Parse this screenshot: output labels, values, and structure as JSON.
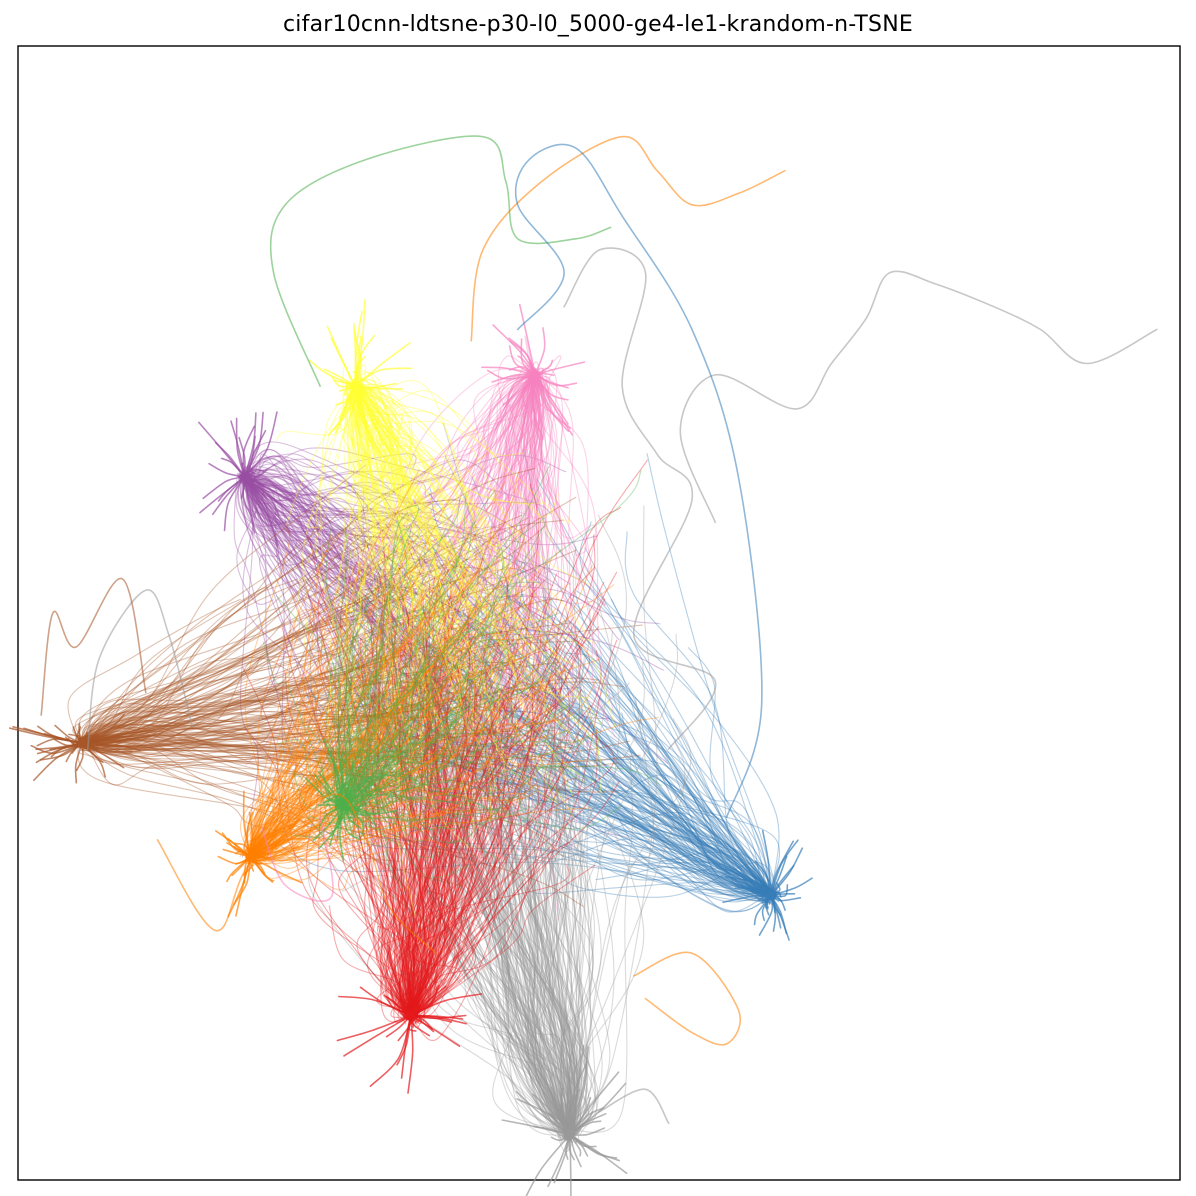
{
  "chart_data": {
    "type": "line",
    "title": "cifar10cnn-ldtsne-p30-l0_5000-ge4-le1-krandom-n-TSNE",
    "xlabel": "",
    "ylabel": "",
    "x_ticks_visible": false,
    "y_ticks_visible": false,
    "xlim": [
      0,
      100
    ],
    "ylim": [
      0,
      100
    ],
    "grid": false,
    "legend": "none",
    "line_opacity": 0.45,
    "series": [
      {
        "color": "#377eb8",
        "hub": [
          64.8,
          25.1
        ],
        "spread": [
          5.6,
          6.8
        ],
        "n": 160
      },
      {
        "color": "#e41a1c",
        "hub": [
          33.8,
          14.5
        ],
        "spread": [
          8.0,
          9.0
        ],
        "n": 240
      },
      {
        "color": "#999999",
        "hub": [
          47.5,
          4.0
        ],
        "spread": [
          9.0,
          11.0
        ],
        "n": 220
      },
      {
        "color": "#a65628",
        "hub": [
          5.5,
          38.5
        ],
        "spread": [
          8.0,
          5.0
        ],
        "n": 170
      },
      {
        "color": "#ff7f00",
        "hub": [
          20.0,
          28.5
        ],
        "spread": [
          6.0,
          7.0
        ],
        "n": 170
      },
      {
        "color": "#4daf4a",
        "hub": [
          28.0,
          33.0
        ],
        "spread": [
          5.5,
          8.0
        ],
        "n": 140
      },
      {
        "color": "#984ea3",
        "hub": [
          19.5,
          62.0
        ],
        "spread": [
          6.0,
          9.0
        ],
        "n": 150
      },
      {
        "color": "#ffff33",
        "hub": [
          29.0,
          70.0
        ],
        "spread": [
          6.5,
          9.0
        ],
        "n": 160
      },
      {
        "color": "#f781bf",
        "hub": [
          44.5,
          71.0
        ],
        "spread": [
          6.0,
          9.0
        ],
        "n": 150
      }
    ],
    "sparse_series": [
      {
        "color": "#999999",
        "points": [
          [
            60,
            58
          ],
          [
            57,
            66
          ],
          [
            60,
            71
          ],
          [
            67,
            68
          ],
          [
            70,
            72
          ],
          [
            73,
            76
          ],
          [
            75,
            80
          ],
          [
            79,
            79
          ],
          [
            84,
            77
          ],
          [
            88,
            75
          ],
          [
            92,
            72
          ],
          [
            98,
            75
          ]
        ]
      },
      {
        "color": "#ff7f00",
        "points": [
          [
            39,
            74
          ],
          [
            40,
            82
          ],
          [
            45,
            88
          ],
          [
            52,
            92
          ],
          [
            55,
            89
          ],
          [
            58,
            86
          ],
          [
            62,
            87
          ],
          [
            66,
            89
          ]
        ]
      },
      {
        "color": "#4daf4a",
        "points": [
          [
            26,
            70
          ],
          [
            22,
            80
          ],
          [
            23,
            86
          ],
          [
            30,
            90
          ],
          [
            40,
            92
          ],
          [
            42,
            88
          ],
          [
            43,
            83
          ],
          [
            48,
            83
          ],
          [
            51,
            84
          ]
        ]
      },
      {
        "color": "#377eb8",
        "points": [
          [
            43,
            75
          ],
          [
            47,
            80
          ],
          [
            43,
            86
          ],
          [
            44,
            90
          ],
          [
            48,
            91
          ],
          [
            52,
            85
          ],
          [
            58,
            75
          ],
          [
            62,
            62
          ],
          [
            64,
            42
          ],
          [
            61,
            32
          ]
        ]
      },
      {
        "color": "#999999",
        "points": [
          [
            47,
            77
          ],
          [
            50,
            82
          ],
          [
            54,
            80
          ],
          [
            52,
            70
          ],
          [
            55,
            64
          ],
          [
            58,
            60
          ],
          [
            53,
            48
          ],
          [
            60,
            44
          ],
          [
            56,
            38
          ]
        ]
      },
      {
        "color": "#ff7f00",
        "points": [
          [
            12,
            30
          ],
          [
            17,
            22
          ],
          [
            20,
            28
          ],
          [
            27,
            34
          ],
          [
            30,
            30
          ],
          [
            32,
            24
          ],
          [
            36,
            20
          ]
        ]
      },
      {
        "color": "#ff7f00",
        "points": [
          [
            53,
            18
          ],
          [
            58,
            20
          ],
          [
            62,
            15
          ],
          [
            61,
            12
          ],
          [
            58,
            13
          ],
          [
            54,
            16
          ]
        ]
      },
      {
        "color": "#999999",
        "points": [
          [
            50,
            6
          ],
          [
            54,
            8
          ],
          [
            56,
            5
          ]
        ]
      },
      {
        "color": "#f781bf",
        "points": [
          [
            21,
            31
          ],
          [
            23,
            26
          ],
          [
            27,
            25
          ],
          [
            26,
            32
          ]
        ]
      },
      {
        "color": "#999999",
        "points": [
          [
            6,
            38
          ],
          [
            7,
            46
          ],
          [
            11,
            52
          ],
          [
            13,
            48
          ],
          [
            15,
            40
          ]
        ]
      },
      {
        "color": "#a65628",
        "points": [
          [
            2,
            41
          ],
          [
            3,
            50
          ],
          [
            5,
            47
          ],
          [
            9,
            53
          ],
          [
            11,
            43
          ]
        ]
      }
    ]
  }
}
